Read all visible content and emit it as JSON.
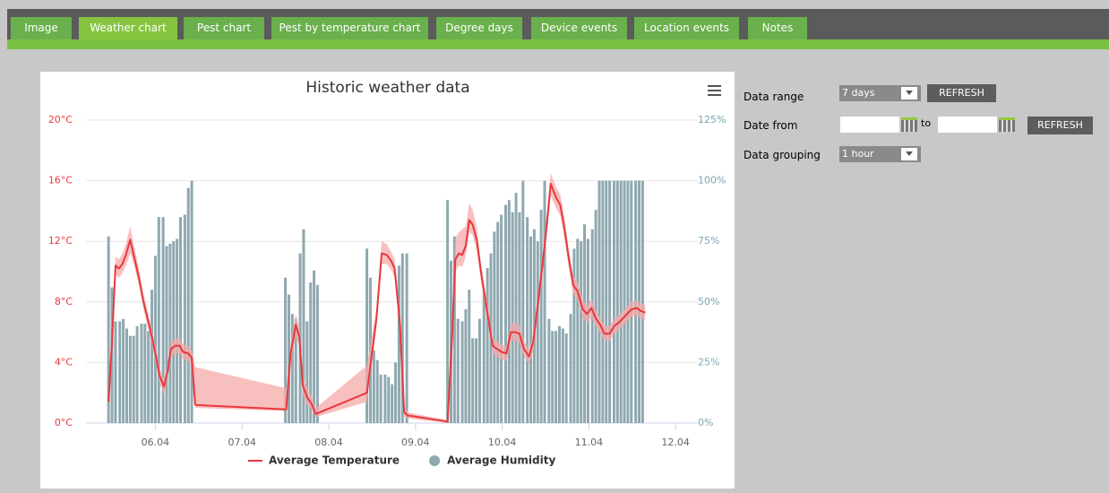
{
  "tabs": [
    "Image",
    "Weather chart",
    "Pest chart",
    "Pest by temperature chart",
    "Degree days",
    "Device events",
    "Location events",
    "Notes"
  ],
  "form": {
    "data_range": {
      "label": "Data range",
      "value": "7 days",
      "button": "REFRESH"
    },
    "date_from": {
      "label": "Date from",
      "to": "to",
      "button": "REFRESH"
    },
    "data_grouping": {
      "label": "Data grouping",
      "value": "1 hour"
    }
  },
  "chart_data": {
    "type": "combo",
    "title": "Historic weather data",
    "xlim": [
      5.2,
      12.05
    ],
    "xticks": [
      {
        "value": 6,
        "label": "06.04"
      },
      {
        "value": 7,
        "label": "07.04"
      },
      {
        "value": 8,
        "label": "08.04"
      },
      {
        "value": 9,
        "label": "09.04"
      },
      {
        "value": 10,
        "label": "10.04"
      },
      {
        "value": 11,
        "label": "11.04"
      },
      {
        "value": 12,
        "label": "12.04"
      }
    ],
    "ylim": [
      0,
      20
    ],
    "yticks": [
      {
        "value": 0,
        "label": "0°C"
      },
      {
        "value": 4,
        "label": "4°C"
      },
      {
        "value": 8,
        "label": "8°C"
      },
      {
        "value": 12,
        "label": "12°C"
      },
      {
        "value": 16,
        "label": "16°C"
      },
      {
        "value": 20,
        "label": "20°C"
      }
    ],
    "y2lim": [
      0,
      125
    ],
    "y2ticks": [
      {
        "value": 0,
        "label": "0%"
      },
      {
        "value": 25,
        "label": "25%"
      },
      {
        "value": 50,
        "label": "50%"
      },
      {
        "value": 75,
        "label": "75%"
      },
      {
        "value": 100,
        "label": "100%"
      },
      {
        "value": 125,
        "label": "125%"
      }
    ],
    "grid": true,
    "series": [
      {
        "name": "Average Humidity",
        "type": "bar",
        "axis": "y2",
        "color": "#8fa8b0",
        "x": [
          5.46,
          5.5,
          5.54,
          5.59,
          5.63,
          5.67,
          5.71,
          5.75,
          5.79,
          5.84,
          5.88,
          5.92,
          5.96,
          6.0,
          6.04,
          6.09,
          6.13,
          6.17,
          6.21,
          6.25,
          6.29,
          6.34,
          6.38,
          6.42,
          7.5,
          7.54,
          7.58,
          7.62,
          7.67,
          7.71,
          7.75,
          7.79,
          7.83,
          7.87,
          8.44,
          8.48,
          8.52,
          8.56,
          8.6,
          8.65,
          8.69,
          8.73,
          8.77,
          8.81,
          8.85,
          8.9,
          9.37,
          9.41,
          9.45,
          9.49,
          9.54,
          9.58,
          9.62,
          9.66,
          9.7,
          9.74,
          9.79,
          9.83,
          9.87,
          9.91,
          9.95,
          9.99,
          10.04,
          10.08,
          10.12,
          10.16,
          10.2,
          10.24,
          10.29,
          10.33,
          10.37,
          10.41,
          10.45,
          10.49,
          10.54,
          10.58,
          10.62,
          10.66,
          10.7,
          10.74,
          10.79,
          10.83,
          10.87,
          10.91,
          10.95,
          10.99,
          11.04,
          11.08,
          11.12,
          11.16,
          11.2,
          11.24,
          11.29,
          11.33,
          11.37,
          11.41,
          11.45,
          11.49,
          11.54,
          11.58,
          11.62
        ],
        "values": [
          77,
          56,
          42,
          42,
          43,
          39,
          36,
          36,
          40,
          41,
          41,
          38,
          55,
          69,
          85,
          85,
          73,
          74,
          75,
          76,
          85,
          86,
          97,
          100,
          60,
          53,
          45,
          43,
          70,
          80,
          42,
          58,
          63,
          57,
          72,
          60,
          30,
          26,
          20,
          20,
          19,
          16,
          25,
          65,
          70,
          70,
          92,
          67,
          77,
          43,
          42,
          47,
          55,
          35,
          35,
          43,
          54,
          64,
          70,
          79,
          83,
          86,
          90,
          92,
          87,
          95,
          87,
          100,
          85,
          77,
          80,
          75,
          88,
          100,
          43,
          38,
          38,
          40,
          39,
          37,
          45,
          72,
          76,
          75,
          82,
          76,
          80,
          88,
          100,
          100,
          100,
          100,
          100,
          100,
          100,
          100,
          100,
          100,
          100,
          100,
          100
        ]
      },
      {
        "name": "Average Temperature",
        "type": "line",
        "color": "#e8383d",
        "band_color": "#f5a9a9",
        "x": [
          5.46,
          5.5,
          5.54,
          5.58,
          5.62,
          5.66,
          5.71,
          5.75,
          5.81,
          5.86,
          5.91,
          5.96,
          6.01,
          6.05,
          6.1,
          6.14,
          6.18,
          6.23,
          6.28,
          6.32,
          6.38,
          6.42,
          6.46,
          7.51,
          7.56,
          7.62,
          7.66,
          7.7,
          7.75,
          7.8,
          7.85,
          8.44,
          8.55,
          8.61,
          8.67,
          8.72,
          8.76,
          8.82,
          8.87,
          8.91,
          9.37,
          9.42,
          9.46,
          9.5,
          9.54,
          9.58,
          9.62,
          9.66,
          9.71,
          9.75,
          9.79,
          9.84,
          9.89,
          9.94,
          9.99,
          10.05,
          10.1,
          10.15,
          10.2,
          10.25,
          10.31,
          10.36,
          10.41,
          10.46,
          10.51,
          10.56,
          10.62,
          10.67,
          10.72,
          10.77,
          10.82,
          10.87,
          10.93,
          10.98,
          11.03,
          11.08,
          11.13,
          11.18,
          11.24,
          11.29,
          11.34,
          11.39,
          11.44,
          11.49,
          11.55,
          11.6,
          11.65
        ],
        "values": [
          1.4,
          5.4,
          10.4,
          10.2,
          10.5,
          11.1,
          12.1,
          11.1,
          9.6,
          8.1,
          6.9,
          5.7,
          4.3,
          3.1,
          2.4,
          3.4,
          4.9,
          5.1,
          5.1,
          4.7,
          4.6,
          4.3,
          1.2,
          0.9,
          4.6,
          6.5,
          5.7,
          2.5,
          1.7,
          1.3,
          0.6,
          2.0,
          6.9,
          11.2,
          11.1,
          10.7,
          10.2,
          6.6,
          0.7,
          0.5,
          0.1,
          5.4,
          10.8,
          11.2,
          11.1,
          11.7,
          13.4,
          13.1,
          12.0,
          10.2,
          8.7,
          6.9,
          5.1,
          4.9,
          4.7,
          4.6,
          6.0,
          6.0,
          5.9,
          4.9,
          4.4,
          5.4,
          7.8,
          10.2,
          12.8,
          15.8,
          14.9,
          14.4,
          12.8,
          10.8,
          9.1,
          8.7,
          7.5,
          7.2,
          7.6,
          6.9,
          6.5,
          5.9,
          5.9,
          6.4,
          6.6,
          6.9,
          7.2,
          7.5,
          7.6,
          7.4,
          7.3
        ],
        "high": [
          1.9,
          6.0,
          11.0,
          10.8,
          11.2,
          11.8,
          13.0,
          11.8,
          10.2,
          8.6,
          7.4,
          6.2,
          4.8,
          3.6,
          2.9,
          3.9,
          5.4,
          5.6,
          5.6,
          5.2,
          5.1,
          4.8,
          3.7,
          2.3,
          5.2,
          7.2,
          6.3,
          3.1,
          2.3,
          1.8,
          1.0,
          3.8,
          7.5,
          12.0,
          11.8,
          11.3,
          10.8,
          7.2,
          1.2,
          0.7,
          0.2,
          6.0,
          12.2,
          12.6,
          12.8,
          13.0,
          14.5,
          14.1,
          12.8,
          10.8,
          9.3,
          7.5,
          5.6,
          5.4,
          5.2,
          5.1,
          6.6,
          6.6,
          6.5,
          5.4,
          4.9,
          6.0,
          8.4,
          10.8,
          13.5,
          16.5,
          15.6,
          15.1,
          13.5,
          11.4,
          9.7,
          9.3,
          8.1,
          7.8,
          8.2,
          7.4,
          7.0,
          6.4,
          6.4,
          6.9,
          7.1,
          7.4,
          7.7,
          8.0,
          8.1,
          7.9,
          7.8
        ],
        "low": [
          1.0,
          4.9,
          9.8,
          9.6,
          9.9,
          10.4,
          11.2,
          10.5,
          9.1,
          7.6,
          6.4,
          5.2,
          3.8,
          2.6,
          1.9,
          2.9,
          4.4,
          4.6,
          4.6,
          4.2,
          4.1,
          3.8,
          1.0,
          0.8,
          4.0,
          5.8,
          5.1,
          1.9,
          1.2,
          0.9,
          0.4,
          1.4,
          6.3,
          10.5,
          10.5,
          10.1,
          9.6,
          6.0,
          0.4,
          0.3,
          0.0,
          4.8,
          10.0,
          10.4,
          10.3,
          11.0,
          12.6,
          12.4,
          11.3,
          9.6,
          8.1,
          6.4,
          4.6,
          4.4,
          4.2,
          4.1,
          5.4,
          5.4,
          5.3,
          4.4,
          3.9,
          4.8,
          7.2,
          9.6,
          12.1,
          15.0,
          14.2,
          13.7,
          12.1,
          10.2,
          8.5,
          8.1,
          6.9,
          6.6,
          7.0,
          6.4,
          6.0,
          5.4,
          5.4,
          5.9,
          6.1,
          6.4,
          6.7,
          7.0,
          7.1,
          6.9,
          6.8
        ]
      }
    ]
  }
}
